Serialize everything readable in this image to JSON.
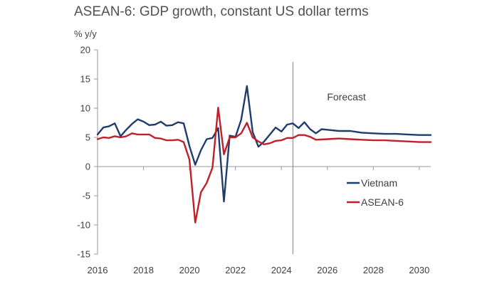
{
  "chart_data": {
    "type": "line",
    "title": "ASEAN-6: GDP growth, constant US dollar terms",
    "ylabel": "% y/y",
    "xlabel": "",
    "xlim": [
      2016,
      2030.5
    ],
    "ylim": [
      -15,
      20
    ],
    "xticks": [
      2016,
      2018,
      2020,
      2022,
      2024,
      2026,
      2028,
      2030
    ],
    "xtick_labels": [
      "2016",
      "2018",
      "2020",
      "2022",
      "2024",
      "2026",
      "2028",
      "2030"
    ],
    "yticks": [
      -15,
      -10,
      -5,
      0,
      5,
      10,
      15,
      20
    ],
    "ytick_labels": [
      "-15",
      "-10",
      "-5",
      "0",
      "5",
      "10",
      "15",
      "20"
    ],
    "forecast_marker": {
      "x": 2024.5,
      "label": "Forecast"
    },
    "legend": {
      "position": "center-right",
      "entries": [
        "Vietnam",
        "ASEAN-6"
      ]
    },
    "series": [
      {
        "name": "Vietnam",
        "color": "#1f3c6e",
        "points": [
          [
            2016.0,
            5.5
          ],
          [
            2016.25,
            6.7
          ],
          [
            2016.5,
            6.9
          ],
          [
            2016.75,
            7.4
          ],
          [
            2017.0,
            5.2
          ],
          [
            2017.25,
            6.3
          ],
          [
            2017.5,
            7.3
          ],
          [
            2017.75,
            8.1
          ],
          [
            2018.0,
            7.7
          ],
          [
            2018.25,
            7.1
          ],
          [
            2018.5,
            7.2
          ],
          [
            2018.75,
            7.7
          ],
          [
            2019.0,
            7.0
          ],
          [
            2019.25,
            7.1
          ],
          [
            2019.5,
            7.6
          ],
          [
            2019.75,
            7.4
          ],
          [
            2020.0,
            3.5
          ],
          [
            2020.25,
            0.3
          ],
          [
            2020.5,
            2.8
          ],
          [
            2020.75,
            4.7
          ],
          [
            2021.0,
            4.9
          ],
          [
            2021.25,
            6.6
          ],
          [
            2021.5,
            -6.0
          ],
          [
            2021.75,
            5.3
          ],
          [
            2022.0,
            5.1
          ],
          [
            2022.25,
            8.0
          ],
          [
            2022.5,
            13.8
          ],
          [
            2022.75,
            5.9
          ],
          [
            2023.0,
            3.4
          ],
          [
            2023.25,
            4.3
          ],
          [
            2023.5,
            5.5
          ],
          [
            2023.75,
            6.7
          ],
          [
            2024.0,
            6.0
          ],
          [
            2024.25,
            7.2
          ],
          [
            2024.5,
            7.4
          ],
          [
            2024.75,
            6.6
          ],
          [
            2025.0,
            7.6
          ],
          [
            2025.25,
            6.4
          ],
          [
            2025.5,
            5.7
          ],
          [
            2025.75,
            6.4
          ],
          [
            2026.0,
            6.3
          ],
          [
            2026.5,
            6.1
          ],
          [
            2027.0,
            6.1
          ],
          [
            2027.5,
            5.8
          ],
          [
            2028.0,
            5.7
          ],
          [
            2028.5,
            5.6
          ],
          [
            2029.0,
            5.6
          ],
          [
            2029.5,
            5.5
          ],
          [
            2030.0,
            5.4
          ],
          [
            2030.5,
            5.4
          ]
        ]
      },
      {
        "name": "ASEAN-6",
        "color": "#c0202a",
        "points": [
          [
            2016.0,
            4.7
          ],
          [
            2016.25,
            5.0
          ],
          [
            2016.5,
            4.9
          ],
          [
            2016.75,
            5.2
          ],
          [
            2017.0,
            5.0
          ],
          [
            2017.25,
            5.2
          ],
          [
            2017.5,
            5.7
          ],
          [
            2017.75,
            5.5
          ],
          [
            2018.0,
            5.5
          ],
          [
            2018.25,
            5.5
          ],
          [
            2018.5,
            4.9
          ],
          [
            2018.75,
            4.8
          ],
          [
            2019.0,
            4.5
          ],
          [
            2019.25,
            4.5
          ],
          [
            2019.5,
            4.6
          ],
          [
            2019.75,
            4.2
          ],
          [
            2020.0,
            1.2
          ],
          [
            2020.25,
            -9.6
          ],
          [
            2020.5,
            -4.4
          ],
          [
            2020.75,
            -2.8
          ],
          [
            2021.0,
            -0.2
          ],
          [
            2021.25,
            10.1
          ],
          [
            2021.5,
            2.1
          ],
          [
            2021.75,
            5.0
          ],
          [
            2022.0,
            5.0
          ],
          [
            2022.25,
            5.7
          ],
          [
            2022.5,
            7.5
          ],
          [
            2022.75,
            5.0
          ],
          [
            2023.0,
            4.3
          ],
          [
            2023.25,
            3.8
          ],
          [
            2023.5,
            4.0
          ],
          [
            2023.75,
            4.4
          ],
          [
            2024.0,
            4.5
          ],
          [
            2024.25,
            4.9
          ],
          [
            2024.5,
            4.9
          ],
          [
            2024.75,
            5.4
          ],
          [
            2025.0,
            5.4
          ],
          [
            2025.25,
            5.1
          ],
          [
            2025.5,
            4.6
          ],
          [
            2026.0,
            4.7
          ],
          [
            2026.5,
            4.8
          ],
          [
            2027.0,
            4.7
          ],
          [
            2027.5,
            4.6
          ],
          [
            2028.0,
            4.5
          ],
          [
            2028.5,
            4.5
          ],
          [
            2029.0,
            4.4
          ],
          [
            2029.5,
            4.3
          ],
          [
            2030.0,
            4.2
          ],
          [
            2030.5,
            4.2
          ]
        ]
      }
    ]
  }
}
